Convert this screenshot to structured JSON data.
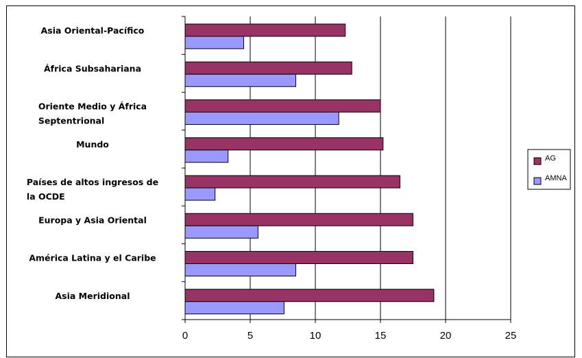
{
  "chart_data": {
    "type": "bar",
    "orientation": "horizontal",
    "title": "",
    "xlabel": "",
    "ylabel": "",
    "categories": [
      "Asia Oriental-Pacífico",
      "África Subsahariana",
      "Oriente Medio y África Septentrional",
      "Mundo",
      "Países de altos ingresos de la OCDE",
      "Europa y Asia Oriental",
      "América Latina y el Caribe",
      "Asia Meridional"
    ],
    "series": [
      {
        "name": "AG",
        "color": "#993366",
        "values": [
          12.3,
          12.8,
          15.0,
          15.2,
          16.5,
          17.5,
          17.5,
          19.1
        ]
      },
      {
        "name": "AMNA",
        "color": "#9999ff",
        "values": [
          4.5,
          8.5,
          11.8,
          3.3,
          2.3,
          5.6,
          8.5,
          7.6
        ]
      }
    ],
    "xlim": [
      0,
      25
    ],
    "xticks": [
      0,
      5,
      10,
      15,
      20,
      25
    ],
    "grid": "vertical",
    "legend": "right"
  }
}
